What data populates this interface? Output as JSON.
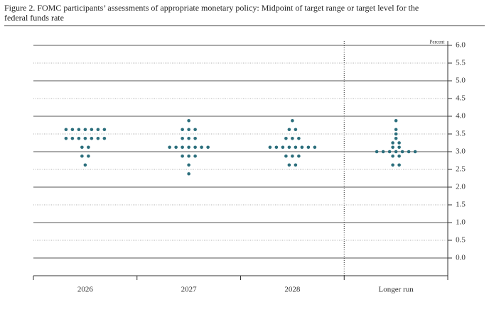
{
  "chart_data": {
    "type": "dot_plot",
    "title": "Figure 2. FOMC participants’ assessments of appropriate monetary policy: Midpoint of target range or target level for the federal funds rate",
    "y_label": "Percent",
    "categories": [
      "2026",
      "2027",
      "2028",
      "Longer run"
    ],
    "values": [
      [
        3.625,
        3.625,
        3.625,
        3.625,
        3.625,
        3.625,
        3.625,
        3.375,
        3.375,
        3.375,
        3.375,
        3.375,
        3.375,
        3.375,
        3.125,
        3.125,
        2.875,
        2.875,
        2.625
      ],
      [
        3.875,
        3.625,
        3.625,
        3.625,
        3.375,
        3.375,
        3.375,
        3.125,
        3.125,
        3.125,
        3.125,
        3.125,
        3.125,
        3.125,
        2.875,
        2.875,
        2.875,
        2.625,
        2.375
      ],
      [
        3.875,
        3.625,
        3.625,
        3.375,
        3.375,
        3.375,
        3.125,
        3.125,
        3.125,
        3.125,
        3.125,
        3.125,
        3.125,
        3.125,
        2.875,
        2.875,
        2.875,
        2.625,
        2.625
      ],
      [
        3.875,
        3.625,
        3.5,
        3.375,
        3.25,
        3.25,
        3.125,
        3.125,
        3,
        3,
        3,
        3,
        3,
        3,
        3,
        2.875,
        2.875,
        2.625,
        2.625
      ]
    ],
    "color": "#2b6e7c",
    "ylim": [
      -0.5,
      6.0
    ],
    "yticks": [
      {
        "value": 0,
        "label": "0.0"
      },
      {
        "value": 0.5,
        "label": "0.5"
      },
      {
        "value": 1,
        "label": "1.0"
      },
      {
        "value": 1.5,
        "label": "1.5"
      },
      {
        "value": 2,
        "label": "2.0"
      },
      {
        "value": 2.5,
        "label": "2.5"
      },
      {
        "value": 3,
        "label": "3.0"
      },
      {
        "value": 3.5,
        "label": "3.5"
      },
      {
        "value": 4,
        "label": "4.0"
      },
      {
        "value": 4.5,
        "label": "4.5"
      },
      {
        "value": 5,
        "label": "5.0"
      },
      {
        "value": 5.5,
        "label": "5.5"
      },
      {
        "value": 6,
        "label": "6.0"
      }
    ],
    "grid": true
  }
}
